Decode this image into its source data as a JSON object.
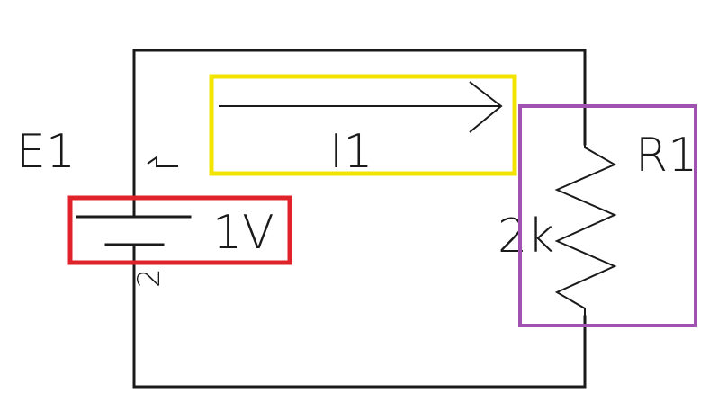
{
  "source": {
    "name": "E1",
    "value": "1V",
    "pin_positive": "1",
    "pin_negative": "2"
  },
  "current": {
    "name": "I1"
  },
  "resistor": {
    "name": "R1",
    "value": "2k"
  },
  "highlights": {
    "source_box_color": "#e0232b",
    "current_box_color": "#f2e400",
    "resistor_box_color": "#a052b0"
  }
}
